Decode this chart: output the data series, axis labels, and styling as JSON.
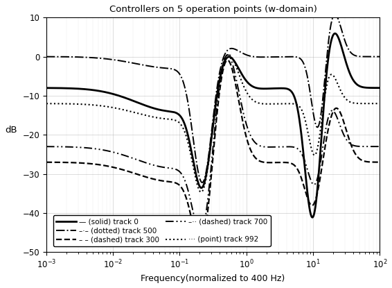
{
  "title": "Controllers on 5 operation points (w-domain)",
  "xlabel": "Frequency(normalized to 400 Hz)",
  "ylabel": "dB",
  "xlim": [
    0.001,
    100.0
  ],
  "ylim": [
    -50,
    10
  ],
  "yticks": [
    -50,
    -40,
    -30,
    -20,
    -10,
    0,
    10
  ],
  "background_color": "#ffffff",
  "legend_entries": [
    {
      "label": "— (solid) track 0",
      "ls": "solid",
      "lw": 2.0,
      "dashes": null
    },
    {
      "label": "– – (dashed) track 300",
      "ls": "dashed",
      "lw": 1.6,
      "dashes": null
    },
    {
      "label": "–·– (dotted) track 500",
      "ls": "dashdot",
      "lw": 1.4,
      "dashes": null
    },
    {
      "label": "–·· (dashed) track 700",
      "ls": "solid",
      "lw": 1.4,
      "dashes": [
        6,
        2,
        1,
        2,
        1,
        2
      ]
    },
    {
      "label": "··· (point) track 992",
      "ls": "dotted",
      "lw": 1.4,
      "dashes": null
    }
  ]
}
